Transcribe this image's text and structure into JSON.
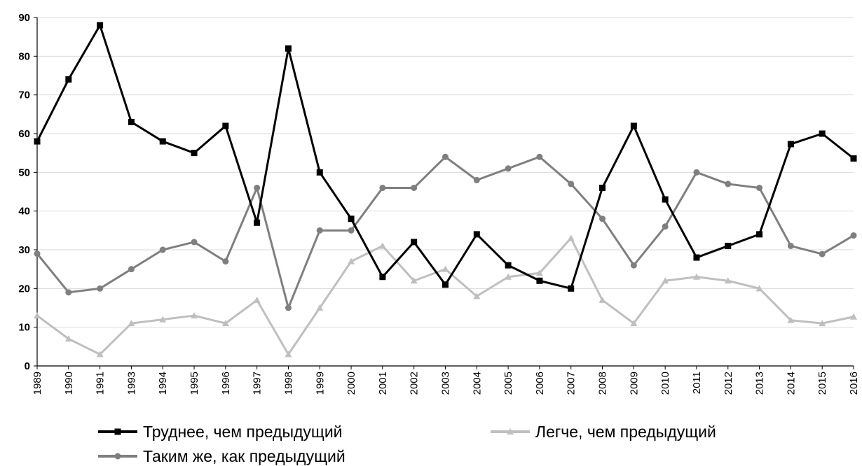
{
  "chart_data": {
    "type": "line",
    "title": "",
    "xlabel": "",
    "ylabel": "",
    "ylim": [
      0,
      90
    ],
    "y_ticks": [
      0,
      10,
      20,
      30,
      40,
      50,
      60,
      70,
      80,
      90
    ],
    "grid": true,
    "legend_position": "bottom",
    "categories": [
      "1989",
      "1990",
      "1991",
      "1993",
      "1994",
      "1995",
      "1996",
      "1997",
      "1998",
      "1999",
      "2000",
      "2001",
      "2002",
      "2003",
      "2004",
      "2005",
      "2006",
      "2007",
      "2008",
      "2009",
      "2010",
      "2011",
      "2012",
      "2013",
      "2014",
      "2015",
      "2016"
    ],
    "series": [
      {
        "name": "Труднее, чем предыдущий",
        "color": "#000000",
        "marker": "square",
        "values": [
          58,
          74,
          88,
          63,
          58,
          55,
          62,
          37,
          82,
          50,
          38,
          23,
          32,
          21,
          34,
          26,
          22,
          20,
          46,
          62,
          43,
          28,
          31,
          34,
          57.3,
          60,
          53.6
        ]
      },
      {
        "name": "Легче, чем предыдущий",
        "color": "#bfbfbf",
        "marker": "triangle",
        "values": [
          13,
          7,
          3,
          11,
          12,
          13,
          11,
          17,
          3,
          15,
          27,
          31,
          22,
          25,
          18,
          23,
          24,
          33,
          17,
          11,
          22,
          23,
          22,
          20,
          11.8,
          11,
          12.7
        ]
      },
      {
        "name": "Таким же, как предыдущий",
        "color": "#7f7f7f",
        "marker": "circle",
        "values": [
          29,
          19,
          20,
          25,
          30,
          32,
          27,
          46,
          15,
          35,
          35,
          46,
          46,
          54,
          48,
          51,
          54,
          47,
          38,
          26,
          36,
          50,
          47,
          46,
          31,
          28.9,
          33.7
        ]
      }
    ]
  }
}
